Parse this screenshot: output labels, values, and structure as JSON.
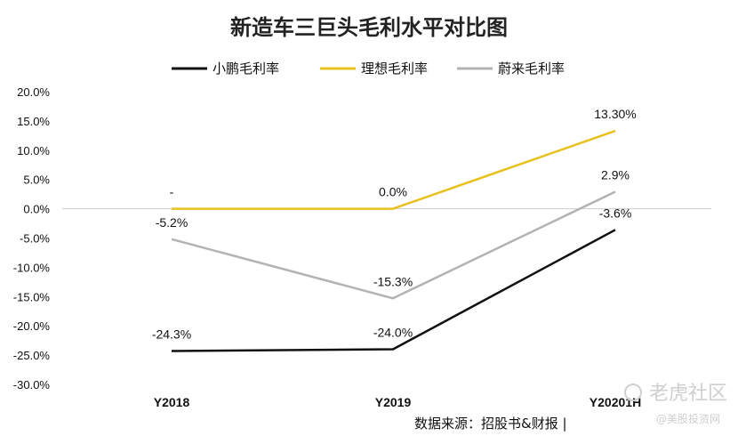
{
  "chart_data": {
    "type": "line",
    "title": "新造车三巨头毛利水平对比图",
    "categories": [
      "Y2018",
      "Y2019",
      "Y20201H"
    ],
    "ylim": [
      -30,
      20
    ],
    "yticks": [
      20,
      15,
      10,
      5,
      0,
      -5,
      -10,
      -15,
      -20,
      -25,
      -30
    ],
    "yticks_labels": [
      "20.0%",
      "15.0%",
      "10.0%",
      "5.0%",
      "0.0%",
      "-5.0%",
      "-10.0%",
      "-15.0%",
      "-20.0%",
      "-25.0%",
      "-30.0%"
    ],
    "grid": false,
    "legend": "top",
    "series": [
      {
        "name": "小鹏毛利率",
        "color": "#111111",
        "values": [
          -24.3,
          -24.0,
          -3.6
        ],
        "labels": [
          "-24.3%",
          "-24.0%",
          "-3.6%"
        ]
      },
      {
        "name": "理想毛利率",
        "color": "#e8c11e",
        "values": [
          0.0,
          0.0,
          13.3
        ],
        "labels": [
          "-",
          "0.0%",
          "13.30%"
        ]
      },
      {
        "name": "蔚来毛利率",
        "color": "#b3b3b3",
        "values": [
          -5.2,
          -15.3,
          2.9
        ],
        "labels": [
          "-5.2%",
          "-15.3%",
          "2.9%"
        ]
      }
    ],
    "source": "数据来源：招股书&财报 |"
  },
  "watermark": {
    "main": "老虎社区",
    "sub": "@美股投资网"
  }
}
